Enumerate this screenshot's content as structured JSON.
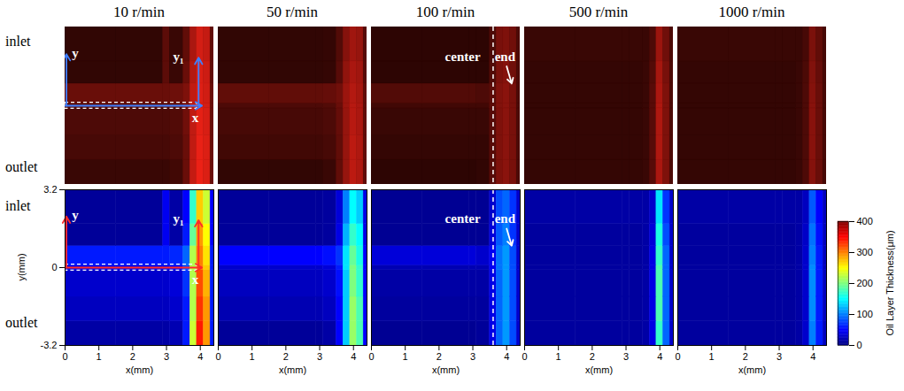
{
  "chart_data": {
    "type": "heatmap",
    "row_labels": [
      "inlet",
      "outlet"
    ],
    "xlabel": "x(mm)",
    "ylabel": "y(mm)",
    "xlim": [
      0,
      4.4
    ],
    "ylim": [
      -3.2,
      3.2
    ],
    "xticks": [
      0,
      1,
      2,
      3,
      4
    ],
    "yticks": [
      -3.2,
      0,
      3.2
    ],
    "x_edges": [
      0,
      1.5,
      2.9,
      3.1,
      3.5,
      3.7,
      3.9,
      4.1,
      4.3,
      4.4
    ],
    "y_edges": [
      -3.2,
      -2.2,
      -1.2,
      -0.1,
      0.1,
      0.9,
      1.8,
      3.2
    ],
    "colorbar": {
      "label": "Oil Layer Thickness(μm)",
      "range": [
        0,
        400
      ],
      "ticks": [
        0,
        100,
        200,
        300,
        400
      ]
    },
    "panels": [
      {
        "title": "10 r/min",
        "cells": [
          [
            15,
            15,
            15,
            20,
            60,
            230,
            340,
            290,
            60
          ],
          [
            25,
            25,
            25,
            30,
            60,
            220,
            330,
            290,
            60
          ],
          [
            30,
            30,
            30,
            35,
            70,
            220,
            320,
            280,
            60
          ],
          [
            40,
            40,
            40,
            45,
            80,
            220,
            300,
            270,
            60
          ],
          [
            60,
            60,
            60,
            65,
            90,
            220,
            300,
            260,
            60
          ],
          [
            10,
            10,
            45,
            15,
            60,
            190,
            290,
            250,
            50
          ],
          [
            10,
            10,
            45,
            15,
            50,
            170,
            270,
            230,
            50
          ]
        ],
        "annotations": {
          "texts": [
            {
              "text": "y",
              "x": 0.3,
              "y": 2.15
            },
            {
              "text": "y₁",
              "x": 3.35,
              "y": 2.0
            },
            {
              "text": "x",
              "x": 3.85,
              "y": -0.5
            }
          ],
          "arrows": [
            {
              "x1": 0.04,
              "y1": 0,
              "x2": 0.04,
              "y2": 2.1,
              "color": {
                "top": "#3f7fff",
                "bottom": "#ff2a2a"
              }
            },
            {
              "x1": 0,
              "y1": 0,
              "x2": 4.05,
              "y2": 0,
              "color": {
                "top": "#3f7fff",
                "bottom": "#ff2a2a"
              }
            },
            {
              "x1": 3.95,
              "y1": 0,
              "x2": 3.95,
              "y2": 1.95,
              "color": {
                "top": "#3f7fff",
                "bottom": "#ff2a2a"
              }
            }
          ],
          "dashed_boxes": [
            {
              "x1": 0,
              "x2": 3.9,
              "y1": -0.12,
              "y2": 0.12
            }
          ],
          "dashed_lines": []
        }
      },
      {
        "title": "50 r/min",
        "cells": [
          [
            10,
            10,
            10,
            15,
            50,
            130,
            210,
            180,
            50
          ],
          [
            20,
            20,
            20,
            25,
            50,
            130,
            210,
            180,
            50
          ],
          [
            25,
            25,
            25,
            30,
            55,
            130,
            200,
            170,
            50
          ],
          [
            30,
            30,
            30,
            35,
            60,
            140,
            200,
            170,
            50
          ],
          [
            50,
            50,
            50,
            55,
            70,
            140,
            190,
            160,
            50
          ],
          [
            10,
            10,
            10,
            12,
            40,
            120,
            170,
            150,
            40
          ],
          [
            10,
            10,
            10,
            12,
            35,
            100,
            150,
            130,
            40
          ]
        ],
        "annotations": {
          "texts": [],
          "arrows": [],
          "dashed_boxes": [],
          "dashed_lines": []
        }
      },
      {
        "title": "100 r/min",
        "cells": [
          [
            8,
            8,
            8,
            10,
            40,
            90,
            110,
            80,
            30
          ],
          [
            12,
            12,
            12,
            12,
            40,
            90,
            110,
            80,
            30
          ],
          [
            15,
            15,
            15,
            15,
            40,
            90,
            110,
            80,
            30
          ],
          [
            20,
            20,
            20,
            20,
            45,
            95,
            110,
            80,
            30
          ],
          [
            35,
            35,
            35,
            30,
            45,
            95,
            110,
            80,
            30
          ],
          [
            8,
            8,
            8,
            8,
            35,
            85,
            100,
            70,
            30
          ],
          [
            8,
            8,
            8,
            8,
            30,
            80,
            90,
            70,
            30
          ]
        ],
        "annotations": {
          "texts": [
            {
              "text": "center",
              "x": 2.7,
              "y": 2.0
            },
            {
              "text": "end",
              "x": 3.95,
              "y": 2.0
            }
          ],
          "arrows": [
            {
              "x1": 4.0,
              "y1": 1.6,
              "x2": 4.15,
              "y2": 0.9,
              "color": "#ffffff"
            }
          ],
          "dashed_boxes": [],
          "dashed_lines": [
            {
              "x": 3.6
            }
          ]
        }
      },
      {
        "title": "500 r/min",
        "cells": [
          [
            12,
            12,
            12,
            12,
            15,
            40,
            170,
            90,
            30
          ],
          [
            12,
            12,
            12,
            12,
            15,
            40,
            180,
            90,
            30
          ],
          [
            12,
            12,
            12,
            12,
            15,
            40,
            180,
            90,
            30
          ],
          [
            12,
            12,
            12,
            12,
            15,
            40,
            180,
            90,
            30
          ],
          [
            12,
            12,
            12,
            12,
            15,
            40,
            170,
            90,
            30
          ],
          [
            12,
            12,
            12,
            12,
            15,
            35,
            160,
            80,
            30
          ],
          [
            15,
            15,
            15,
            15,
            15,
            30,
            140,
            70,
            30
          ]
        ],
        "annotations": {
          "texts": [],
          "arrows": [],
          "dashed_boxes": [],
          "dashed_lines": []
        }
      },
      {
        "title": "1000 r/min",
        "cells": [
          [
            12,
            12,
            12,
            12,
            15,
            30,
            100,
            60,
            25
          ],
          [
            12,
            12,
            12,
            12,
            15,
            30,
            105,
            60,
            25
          ],
          [
            12,
            12,
            12,
            12,
            15,
            30,
            105,
            60,
            25
          ],
          [
            12,
            12,
            12,
            12,
            15,
            30,
            105,
            60,
            25
          ],
          [
            12,
            12,
            12,
            12,
            15,
            30,
            100,
            60,
            25
          ],
          [
            12,
            12,
            12,
            12,
            15,
            28,
            95,
            55,
            25
          ],
          [
            15,
            15,
            15,
            15,
            15,
            25,
            85,
            50,
            25
          ]
        ],
        "annotations": {
          "texts": [],
          "arrows": [],
          "dashed_boxes": [],
          "dashed_lines": []
        }
      }
    ]
  }
}
